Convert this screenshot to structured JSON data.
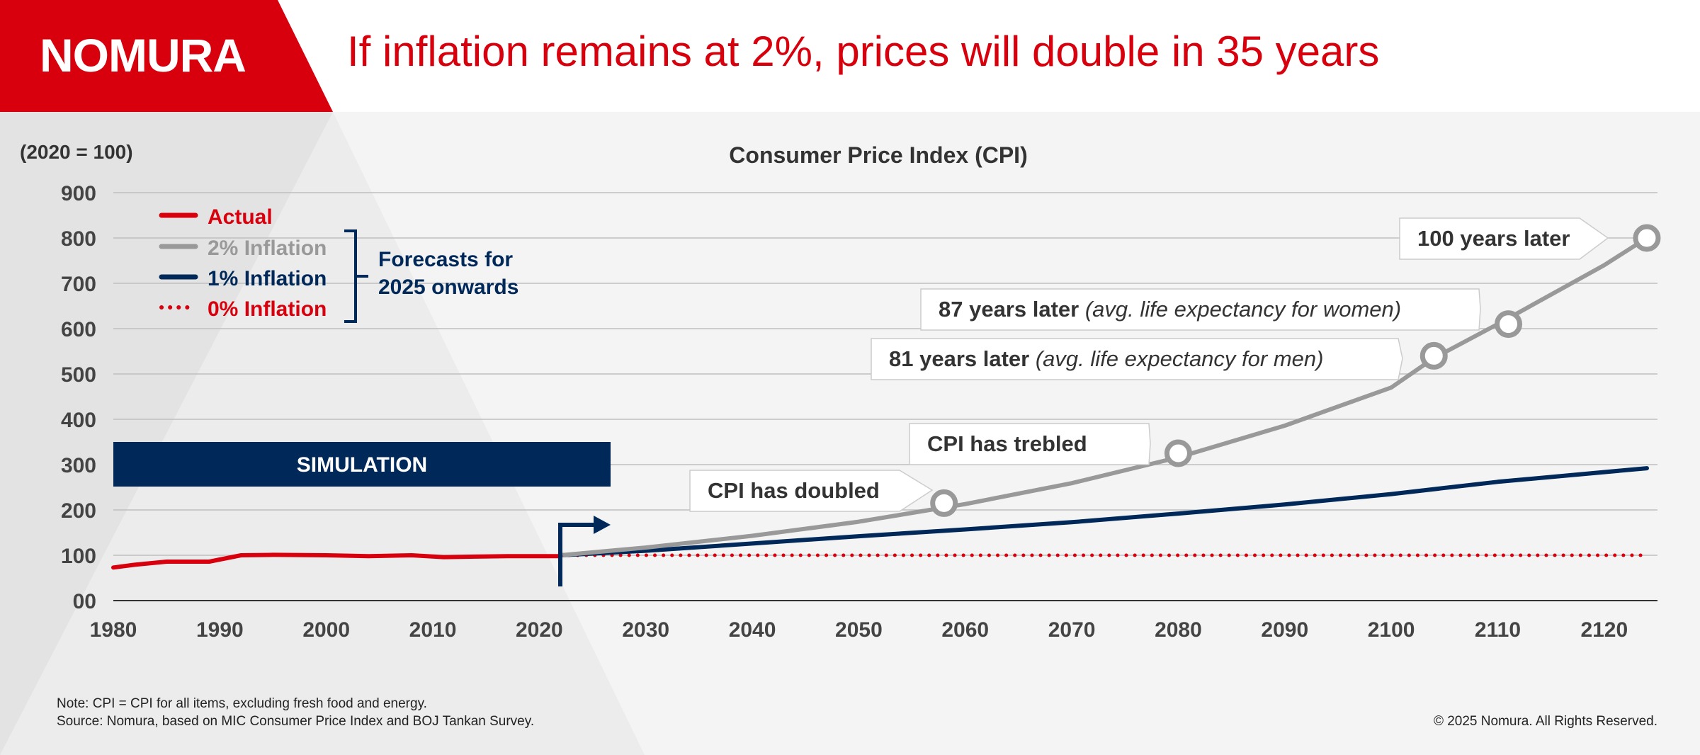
{
  "brand": {
    "logo_text": "NOMURA",
    "accent_color": "#d9000d"
  },
  "headline": "If inflation remains at 2%, prices will double in 35 years",
  "chart_data": {
    "type": "line",
    "title": "Consumer Price Index (CPI)",
    "ylabel": "(2020 = 100)",
    "xlabel": "",
    "xlim": [
      1980,
      2125
    ],
    "ylim": [
      0,
      900
    ],
    "x_ticks": [
      1980,
      1990,
      2000,
      2010,
      2020,
      2030,
      2040,
      2050,
      2060,
      2070,
      2080,
      2090,
      2100,
      2110,
      2120
    ],
    "y_ticks": [
      0,
      100,
      200,
      300,
      400,
      500,
      600,
      700,
      800,
      900
    ],
    "y_tick_labels": [
      "00",
      "100",
      "200",
      "300",
      "400",
      "500",
      "600",
      "700",
      "800",
      "900"
    ],
    "grid": true,
    "legend_position": "top-left",
    "legend_bracket_label": "Forecasts for 2025 onwards",
    "series": [
      {
        "name": "Actual",
        "color": "#d9000d",
        "style": "solid",
        "x": [
          1980,
          1982,
          1985,
          1989,
          1992,
          1995,
          2000,
          2004,
          2008,
          2011,
          2014,
          2017,
          2020,
          2022
        ],
        "y": [
          73,
          79,
          86,
          86,
          100,
          101,
          100,
          98,
          100,
          96,
          97,
          98,
          98,
          98
        ]
      },
      {
        "name": "2% Inflation",
        "color": "#999999",
        "style": "solid",
        "x": [
          2022,
          2030,
          2040,
          2050,
          2060,
          2070,
          2080,
          2090,
          2100,
          2104,
          2110,
          2120,
          2124
        ],
        "y": [
          100,
          117,
          143,
          174,
          213,
          259,
          316,
          386,
          470,
          535,
          610,
          740,
          800
        ]
      },
      {
        "name": "1% Inflation",
        "color": "#00295a",
        "style": "solid",
        "x": [
          2022,
          2030,
          2040,
          2050,
          2060,
          2070,
          2080,
          2090,
          2100,
          2110,
          2124
        ],
        "y": [
          100,
          110,
          126,
          142,
          157,
          173,
          192,
          212,
          235,
          262,
          292
        ]
      },
      {
        "name": "0% Inflation",
        "color": "#d9000d",
        "style": "dotted",
        "x": [
          2022,
          2124
        ],
        "y": [
          100,
          100
        ]
      }
    ],
    "milestones": [
      {
        "x": 2058,
        "y": 215,
        "label": "CPI has doubled",
        "note": ""
      },
      {
        "x": 2080,
        "y": 325,
        "label": "CPI has trebled",
        "note": ""
      },
      {
        "x": 2104,
        "y": 540,
        "label": "81 years later",
        "note": "(avg. life expectancy for men)"
      },
      {
        "x": 2111,
        "y": 610,
        "label": "87 years later",
        "note": "(avg. life expectancy for women)"
      },
      {
        "x": 2124,
        "y": 800,
        "label": "100 years later",
        "note": ""
      }
    ],
    "simulation_label": "SIMULATION"
  },
  "footer": {
    "note": "Note: CPI = CPI for all items, excluding fresh food and energy.",
    "source": "Source: Nomura, based on MIC Consumer Price Index and BOJ Tankan Survey.",
    "copyright": "© 2025 Nomura. All Rights Reserved."
  }
}
